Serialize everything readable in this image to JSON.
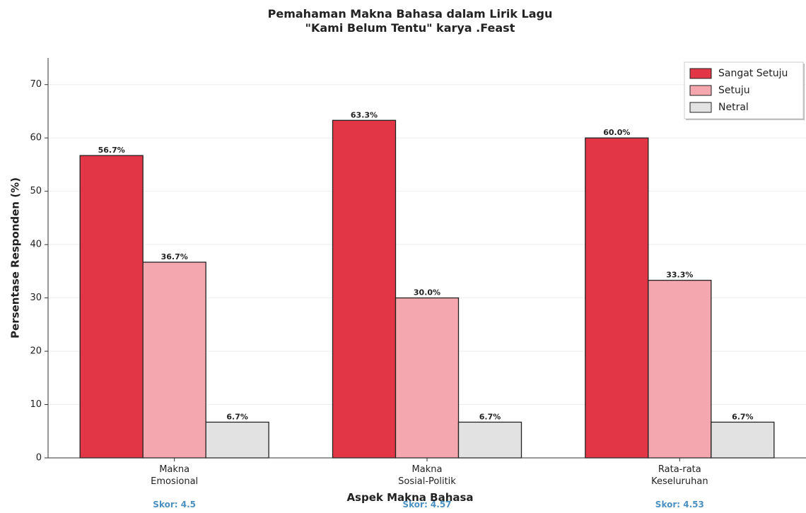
{
  "chart_data": {
    "type": "bar",
    "title": "Pemahaman Makna Bahasa dalam Lirik Lagu\n\"Kami Belum Tentu\" karya .Feast",
    "xlabel": "Aspek Makna Bahasa",
    "ylabel": "Persentase Responden (%)",
    "categories": [
      "Makna\nEmosional",
      "Makna\nSosial-Politik",
      "Rata-rata\nKeseluruhan"
    ],
    "annotations": [
      "Skor: 4.5",
      "Skor: 4.57",
      "Skor: 4.53"
    ],
    "series": [
      {
        "name": "Sangat Setuju",
        "color": "#e23545",
        "values": [
          56.7,
          63.3,
          60.0
        ],
        "value_labels": [
          "56.7%",
          "63.3%",
          "60.0%"
        ]
      },
      {
        "name": "Setuju",
        "color": "#f4a7ae",
        "values": [
          36.7,
          30.0,
          33.3
        ],
        "value_labels": [
          "36.7%",
          "30.0%",
          "33.3%"
        ]
      },
      {
        "name": "Netral",
        "color": "#e2e2e2",
        "values": [
          6.7,
          6.7,
          6.7
        ],
        "value_labels": [
          "6.7%",
          "6.7%",
          "6.7%"
        ]
      }
    ],
    "ylim": [
      0,
      75
    ],
    "yticks": [
      0,
      10,
      20,
      30,
      40,
      50,
      60,
      70
    ],
    "grid": true,
    "legend": "upper right"
  }
}
